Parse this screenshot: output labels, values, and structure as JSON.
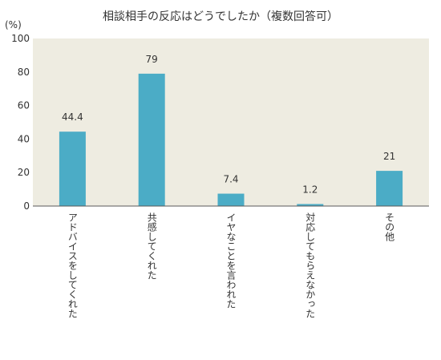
{
  "chart_data": {
    "type": "bar",
    "title": "相談相手の反応はどうでしたか（複数回答可）",
    "ylabel": "(%)",
    "xlabel": "",
    "categories": [
      "アドバイスをしてくれた",
      "共感してくれた",
      "イヤなことを言われた",
      "対応してもらえなかった",
      "その他"
    ],
    "values": [
      44.4,
      79,
      7.4,
      1.2,
      21
    ],
    "value_labels": [
      "44.4",
      "79",
      "7.4",
      "1.2",
      "21"
    ],
    "ylim": [
      0,
      100
    ],
    "yticks": [
      0,
      20,
      40,
      60,
      80,
      100
    ],
    "ytick_labels": [
      "0",
      "20",
      "40",
      "60",
      "80",
      "100"
    ],
    "grid": false,
    "legend": "none",
    "colors": {
      "bar": "#4bacc6",
      "plot_bg": "#eeece1",
      "axis": "#595959"
    }
  }
}
